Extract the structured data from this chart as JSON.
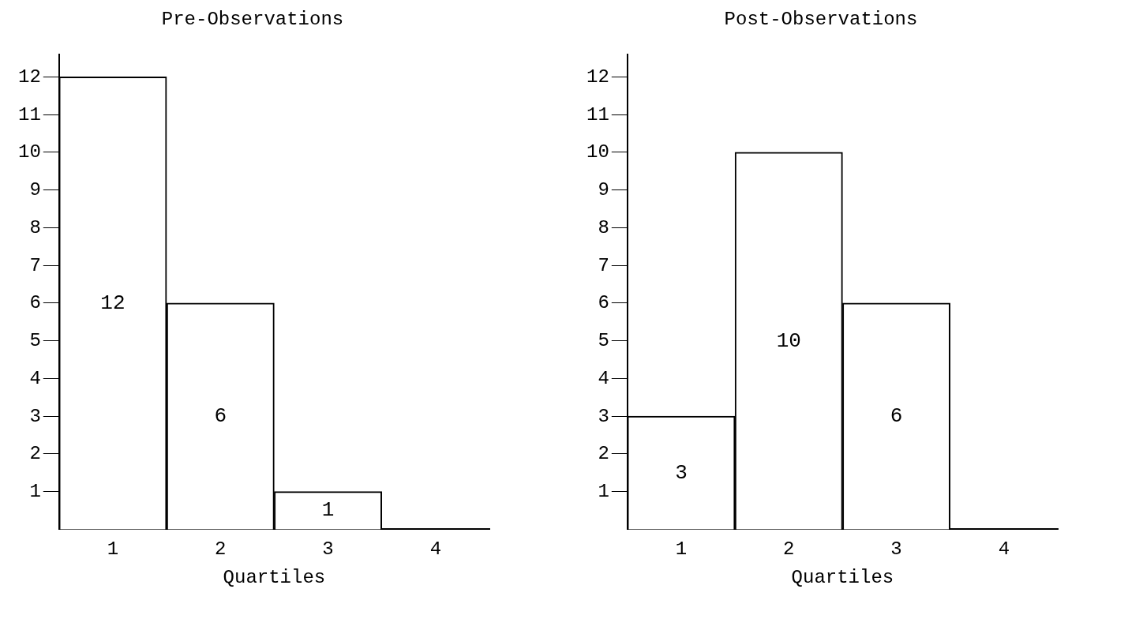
{
  "chart_data": [
    {
      "type": "bar",
      "title": "Pre-Observations",
      "xlabel": "Quartiles",
      "categories": [
        "1",
        "2",
        "3",
        "4"
      ],
      "values": [
        12,
        6,
        1,
        0
      ],
      "value_labels": [
        "12",
        "6",
        "1",
        null
      ],
      "color": "#ffffff",
      "ylim": [
        0,
        12.6
      ],
      "yticks": [
        1,
        2,
        3,
        4,
        5,
        6,
        7,
        8,
        9,
        10,
        11,
        12
      ]
    },
    {
      "type": "bar",
      "title": "Post-Observations",
      "xlabel": "Quartiles",
      "categories": [
        "1",
        "2",
        "3",
        "4"
      ],
      "values": [
        3,
        10,
        6,
        0
      ],
      "value_labels": [
        "3",
        "10",
        "6",
        null
      ],
      "color": "#ffffff",
      "ylim": [
        0,
        12.6
      ],
      "yticks": [
        1,
        2,
        3,
        4,
        5,
        6,
        7,
        8,
        9,
        10,
        11,
        12
      ]
    }
  ]
}
